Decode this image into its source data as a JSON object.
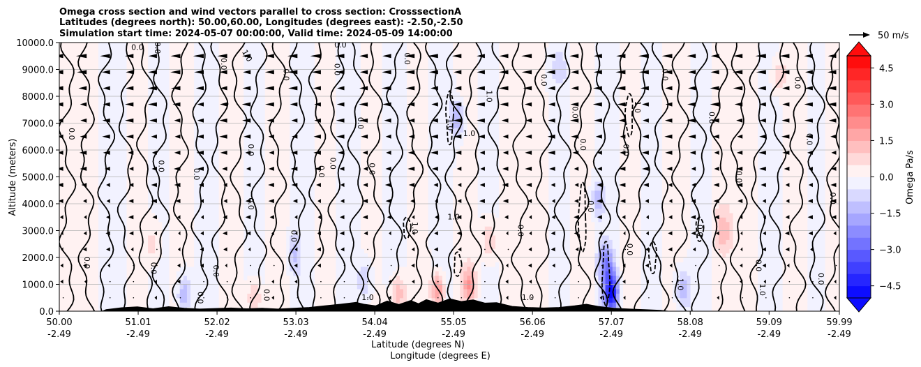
{
  "chart_data": {
    "type": "contourf",
    "title": [
      "Omega cross section and wind vectors parallel to cross section: CrosssectionA",
      "Latitudes (degrees north): 50.00,60.00, Longitudes (degrees east): -2.50,-2.50",
      "Simulation start time: 2024-05-07 00:00:00, Valid time: 2024-05-09 14:00:00"
    ],
    "ylabel": "Altitude (meters)",
    "xlabel_lat": "Latitude (degrees N)",
    "xlabel_lon": "Longitude (degrees E)",
    "ylim": [
      0,
      10000
    ],
    "xlim": [
      50.0,
      59.99
    ],
    "y_ticks": [
      {
        "value": 0,
        "label": "0.0"
      },
      {
        "value": 1000,
        "label": "1000.0"
      },
      {
        "value": 2000,
        "label": "2000.0"
      },
      {
        "value": 3000,
        "label": "3000.0"
      },
      {
        "value": 4000,
        "label": "4000.0"
      },
      {
        "value": 5000,
        "label": "5000.0"
      },
      {
        "value": 6000,
        "label": "6000.0"
      },
      {
        "value": 7000,
        "label": "7000.0"
      },
      {
        "value": 8000,
        "label": "8000.0"
      },
      {
        "value": 9000,
        "label": "9000.0"
      },
      {
        "value": 10000,
        "label": "10000.0"
      }
    ],
    "x_ticks": [
      {
        "value": 50.0,
        "lat": "50.00",
        "lon": "-2.49"
      },
      {
        "value": 51.01,
        "lat": "51.01",
        "lon": "-2.49"
      },
      {
        "value": 52.02,
        "lat": "52.02",
        "lon": "-2.49"
      },
      {
        "value": 53.03,
        "lat": "53.03",
        "lon": "-2.49"
      },
      {
        "value": 54.04,
        "lat": "54.04",
        "lon": "-2.49"
      },
      {
        "value": 55.05,
        "lat": "55.05",
        "lon": "-2.49"
      },
      {
        "value": 56.06,
        "lat": "56.06",
        "lon": "-2.49"
      },
      {
        "value": 57.07,
        "lat": "57.07",
        "lon": "-2.49"
      },
      {
        "value": 58.08,
        "lat": "58.08",
        "lon": "-2.49"
      },
      {
        "value": 59.09,
        "lat": "59.09",
        "lon": "-2.49"
      },
      {
        "value": 59.99,
        "lat": "59.99",
        "lon": "-2.49"
      }
    ],
    "colorbar": {
      "label": "Omega Pa/s",
      "range": [
        -5.0,
        5.0
      ],
      "levels": 20,
      "cmap": "bwr",
      "ticks": [
        {
          "value": 4.5,
          "label": "4.5"
        },
        {
          "value": 3.0,
          "label": "3.0"
        },
        {
          "value": 1.5,
          "label": "1.5"
        },
        {
          "value": 0.0,
          "label": "0.0"
        },
        {
          "value": -1.5,
          "label": "−1.5"
        },
        {
          "value": -3.0,
          "label": "−3.0"
        },
        {
          "value": -4.5,
          "label": "−4.5"
        }
      ]
    },
    "quiver_key": {
      "label": "50 m/s",
      "value": 50
    },
    "field_columns": [
      {
        "x": 50.05,
        "v": 0.3
      },
      {
        "x": 50.35,
        "v": 0.2
      },
      {
        "x": 50.7,
        "v": -0.3
      },
      {
        "x": 51.0,
        "v": 0.2
      },
      {
        "x": 51.3,
        "v": -0.3
      },
      {
        "x": 51.55,
        "v": 0.4
      },
      {
        "x": 51.9,
        "v": -0.2
      },
      {
        "x": 52.2,
        "v": 0.3
      },
      {
        "x": 52.5,
        "v": -0.3
      },
      {
        "x": 52.8,
        "v": 0.3
      },
      {
        "x": 53.1,
        "v": -0.4
      },
      {
        "x": 53.4,
        "v": 0.3
      },
      {
        "x": 53.7,
        "v": -0.3
      },
      {
        "x": 54.0,
        "v": 0.4
      },
      {
        "x": 54.3,
        "v": -0.4
      },
      {
        "x": 54.6,
        "v": 0.4
      },
      {
        "x": 54.9,
        "v": -0.5
      },
      {
        "x": 55.2,
        "v": 0.3
      },
      {
        "x": 55.5,
        "v": -0.3
      },
      {
        "x": 55.8,
        "v": 0.4
      },
      {
        "x": 56.1,
        "v": 0.3
      },
      {
        "x": 56.4,
        "v": -0.3
      },
      {
        "x": 56.7,
        "v": 0.4
      },
      {
        "x": 57.0,
        "v": -0.4
      },
      {
        "x": 57.3,
        "v": 0.3
      },
      {
        "x": 57.6,
        "v": -0.3
      },
      {
        "x": 57.9,
        "v": 0.5
      },
      {
        "x": 58.2,
        "v": -0.3
      },
      {
        "x": 58.5,
        "v": 0.4
      },
      {
        "x": 58.8,
        "v": 0.3
      },
      {
        "x": 59.1,
        "v": -0.3
      },
      {
        "x": 59.4,
        "v": 0.3
      },
      {
        "x": 59.7,
        "v": -0.2
      },
      {
        "x": 59.95,
        "v": 0.2
      }
    ],
    "field_blobs": [
      {
        "x": 54.85,
        "z": 800,
        "v": 2.4
      },
      {
        "x": 55.25,
        "z": 1000,
        "v": 1.8
      },
      {
        "x": 54.35,
        "z": 700,
        "v": 1.4
      },
      {
        "x": 57.07,
        "z": 700,
        "v": -4.5
      },
      {
        "x": 57.0,
        "z": 1800,
        "v": -2.2
      },
      {
        "x": 55.1,
        "z": 7200,
        "v": -1.6
      },
      {
        "x": 58.0,
        "z": 800,
        "v": -1.5
      },
      {
        "x": 51.6,
        "z": 600,
        "v": -1.6
      },
      {
        "x": 53.9,
        "z": 1200,
        "v": -1.0
      },
      {
        "x": 56.9,
        "z": 4200,
        "v": -1.1
      },
      {
        "x": 58.5,
        "z": 3000,
        "v": 1.1
      },
      {
        "x": 52.5,
        "z": 500,
        "v": 1.2
      },
      {
        "x": 59.2,
        "z": 8800,
        "v": 1.0
      },
      {
        "x": 55.5,
        "z": 2600,
        "v": 1.0
      },
      {
        "x": 51.2,
        "z": 2500,
        "v": 0.8
      },
      {
        "x": 56.4,
        "z": 9000,
        "v": -0.9
      },
      {
        "x": 53.0,
        "z": 2200,
        "v": -0.9
      }
    ],
    "terrain": [
      {
        "x": 50.0,
        "h": 0
      },
      {
        "x": 50.55,
        "h": 0
      },
      {
        "x": 50.6,
        "h": 60
      },
      {
        "x": 50.8,
        "h": 130
      },
      {
        "x": 51.0,
        "h": 160
      },
      {
        "x": 51.2,
        "h": 90
      },
      {
        "x": 51.4,
        "h": 170
      },
      {
        "x": 51.6,
        "h": 110
      },
      {
        "x": 51.8,
        "h": 80
      },
      {
        "x": 52.0,
        "h": 100
      },
      {
        "x": 52.2,
        "h": 120
      },
      {
        "x": 52.4,
        "h": 90
      },
      {
        "x": 52.6,
        "h": 110
      },
      {
        "x": 52.8,
        "h": 80
      },
      {
        "x": 53.0,
        "h": 110
      },
      {
        "x": 53.2,
        "h": 140
      },
      {
        "x": 53.4,
        "h": 200
      },
      {
        "x": 53.6,
        "h": 260
      },
      {
        "x": 53.8,
        "h": 330
      },
      {
        "x": 53.9,
        "h": 260
      },
      {
        "x": 54.05,
        "h": 200
      },
      {
        "x": 54.2,
        "h": 380
      },
      {
        "x": 54.35,
        "h": 250
      },
      {
        "x": 54.5,
        "h": 400
      },
      {
        "x": 54.6,
        "h": 280
      },
      {
        "x": 54.7,
        "h": 430
      },
      {
        "x": 54.85,
        "h": 300
      },
      {
        "x": 55.0,
        "h": 460
      },
      {
        "x": 55.15,
        "h": 360
      },
      {
        "x": 55.3,
        "h": 420
      },
      {
        "x": 55.45,
        "h": 300
      },
      {
        "x": 55.6,
        "h": 320
      },
      {
        "x": 55.8,
        "h": 180
      },
      {
        "x": 56.0,
        "h": 140
      },
      {
        "x": 56.2,
        "h": 120
      },
      {
        "x": 56.4,
        "h": 140
      },
      {
        "x": 56.6,
        "h": 200
      },
      {
        "x": 56.75,
        "h": 260
      },
      {
        "x": 56.9,
        "h": 180
      },
      {
        "x": 57.1,
        "h": 110
      },
      {
        "x": 57.3,
        "h": 80
      },
      {
        "x": 57.5,
        "h": 60
      },
      {
        "x": 57.7,
        "h": 30
      },
      {
        "x": 57.8,
        "h": 0
      },
      {
        "x": 59.99,
        "h": 0
      }
    ],
    "contour_columns": [
      50.1,
      50.35,
      50.6,
      50.85,
      51.1,
      51.3,
      51.55,
      51.8,
      52.05,
      52.3,
      52.55,
      52.8,
      53.05,
      53.3,
      53.55,
      53.8,
      54.05,
      54.3,
      54.55,
      54.8,
      55.05,
      55.3,
      55.6,
      55.9,
      56.2,
      56.45,
      56.7,
      56.95,
      57.2,
      57.45,
      57.7,
      57.95,
      58.2,
      58.45,
      58.7,
      58.95,
      59.2,
      59.45,
      59.7,
      59.92
    ],
    "dashed_contours": [
      {
        "x": 55.0,
        "z0": 6200,
        "z1": 8200
      },
      {
        "x": 54.45,
        "z0": 2700,
        "z1": 3500
      },
      {
        "x": 55.1,
        "z0": 1300,
        "z1": 2200
      },
      {
        "x": 57.0,
        "z0": 200,
        "z1": 2600
      },
      {
        "x": 56.7,
        "z0": 2200,
        "z1": 4800
      },
      {
        "x": 57.3,
        "z0": 6500,
        "z1": 8100
      },
      {
        "x": 57.6,
        "z0": 1400,
        "z1": 2600
      },
      {
        "x": 58.2,
        "z0": 2600,
        "z1": 3500
      }
    ],
    "contour_labels": [
      {
        "x": 50.15,
        "z": 6600,
        "text": "0.0",
        "rot": 90
      },
      {
        "x": 50.35,
        "z": 1800,
        "text": "0.0",
        "rot": 90
      },
      {
        "x": 51.0,
        "z": 9800,
        "text": "0.0",
        "rot": 0
      },
      {
        "x": 51.2,
        "z": 1600,
        "text": "0.0",
        "rot": 90
      },
      {
        "x": 51.25,
        "z": 9800,
        "text": "0.0",
        "rot": 90
      },
      {
        "x": 51.3,
        "z": 5400,
        "text": "0.0",
        "rot": 90
      },
      {
        "x": 51.75,
        "z": 5100,
        "text": "0.0",
        "rot": 90
      },
      {
        "x": 51.8,
        "z": 500,
        "text": "0.0",
        "rot": 90
      },
      {
        "x": 52.0,
        "z": 1500,
        "text": "0.0",
        "rot": 90
      },
      {
        "x": 52.1,
        "z": 9200,
        "text": "0.0",
        "rot": 90
      },
      {
        "x": 52.45,
        "z": 4000,
        "text": "0.0",
        "rot": 90
      },
      {
        "x": 52.4,
        "z": 9500,
        "text": "1.0",
        "rot": 60
      },
      {
        "x": 52.45,
        "z": 6000,
        "text": "0.0",
        "rot": 90
      },
      {
        "x": 52.65,
        "z": 600,
        "text": "0.0",
        "rot": 90
      },
      {
        "x": 52.9,
        "z": 8800,
        "text": "0.0",
        "rot": 90
      },
      {
        "x": 53.0,
        "z": 2800,
        "text": "0.0",
        "rot": 90
      },
      {
        "x": 53.35,
        "z": 5200,
        "text": "0.0",
        "rot": 90
      },
      {
        "x": 53.5,
        "z": 5500,
        "text": "0.0",
        "rot": 90
      },
      {
        "x": 53.55,
        "z": 9000,
        "text": "0.0",
        "rot": 90
      },
      {
        "x": 53.6,
        "z": 9900,
        "text": "0.0",
        "rot": 0
      },
      {
        "x": 53.85,
        "z": 7000,
        "text": "0.0",
        "rot": 90
      },
      {
        "x": 53.95,
        "z": 500,
        "text": "1.0",
        "rot": 0
      },
      {
        "x": 54.0,
        "z": 5300,
        "text": "0.0",
        "rot": 90
      },
      {
        "x": 54.45,
        "z": 9400,
        "text": "0.0",
        "rot": 90
      },
      {
        "x": 54.55,
        "z": 3100,
        "text": "1.0",
        "rot": 90
      },
      {
        "x": 55.0,
        "z": 7000,
        "text": "-1.0",
        "rot": 90
      },
      {
        "x": 55.05,
        "z": 3500,
        "text": "1.0",
        "rot": 0
      },
      {
        "x": 55.25,
        "z": 6600,
        "text": "1.0",
        "rot": 0
      },
      {
        "x": 55.5,
        "z": 8000,
        "text": "1.0",
        "rot": 90
      },
      {
        "x": 55.9,
        "z": 3000,
        "text": "0.0",
        "rot": 90
      },
      {
        "x": 56.0,
        "z": 500,
        "text": "1.0",
        "rot": 0
      },
      {
        "x": 56.2,
        "z": 8600,
        "text": "0.0",
        "rot": 90
      },
      {
        "x": 56.6,
        "z": 7400,
        "text": "0.0",
        "rot": 90
      },
      {
        "x": 56.7,
        "z": 6200,
        "text": "0.0",
        "rot": 90
      },
      {
        "x": 56.8,
        "z": 3900,
        "text": "0.0",
        "rot": 90
      },
      {
        "x": 57.25,
        "z": 6000,
        "text": "0.0",
        "rot": 90
      },
      {
        "x": 57.3,
        "z": 2300,
        "text": "0.0",
        "rot": 90
      },
      {
        "x": 57.4,
        "z": 7600,
        "text": "1.0",
        "rot": 90
      },
      {
        "x": 57.75,
        "z": 8800,
        "text": "0.0",
        "rot": 90
      },
      {
        "x": 57.95,
        "z": 1000,
        "text": "1.0",
        "rot": 90
      },
      {
        "x": 58.2,
        "z": 3000,
        "text": "0.0",
        "rot": 90
      },
      {
        "x": 58.35,
        "z": 7200,
        "text": "0.0",
        "rot": 90
      },
      {
        "x": 58.7,
        "z": 5000,
        "text": "0.0",
        "rot": 90
      },
      {
        "x": 58.95,
        "z": 1700,
        "text": "0.0",
        "rot": 90
      },
      {
        "x": 59.0,
        "z": 800,
        "text": "1.0",
        "rot": 90
      },
      {
        "x": 59.45,
        "z": 8500,
        "text": "0.0",
        "rot": 90
      },
      {
        "x": 59.6,
        "z": 6400,
        "text": "0.0",
        "rot": 90
      },
      {
        "x": 59.9,
        "z": 4200,
        "text": "0.0",
        "rot": 90
      },
      {
        "x": 59.75,
        "z": 1200,
        "text": "0.0",
        "rot": 90
      }
    ]
  }
}
